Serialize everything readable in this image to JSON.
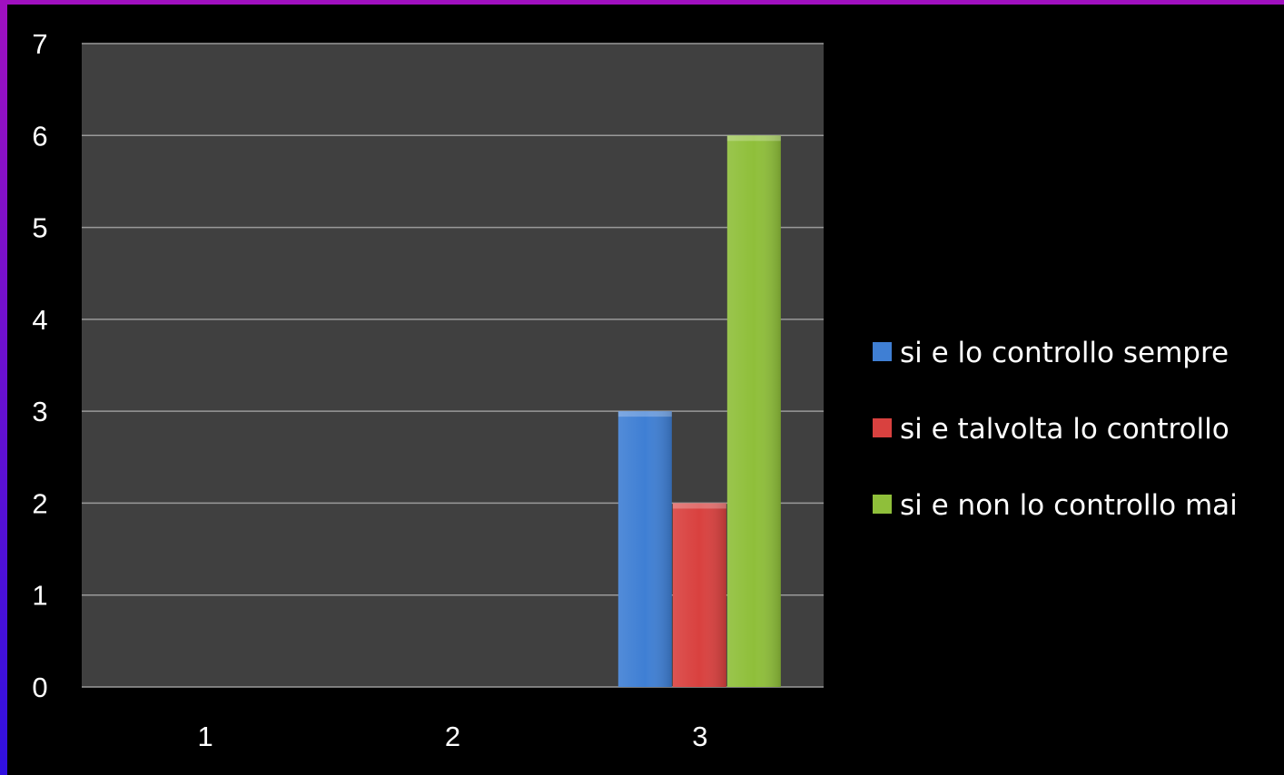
{
  "chart_data": {
    "type": "bar",
    "categories": [
      "1",
      "2",
      "3"
    ],
    "series": [
      {
        "name": "si e lo controllo sempre",
        "values": [
          0,
          0,
          3
        ],
        "color": "#3f7fd4"
      },
      {
        "name": "si e talvolta lo controllo",
        "values": [
          0,
          0,
          2
        ],
        "color": "#d9413f"
      },
      {
        "name": "si e non lo controllo mai",
        "values": [
          0,
          0,
          6
        ],
        "color": "#8fbf3a"
      }
    ],
    "ylim": [
      0,
      7
    ],
    "yticks": [
      "0",
      "1",
      "2",
      "3",
      "4",
      "5",
      "6",
      "7"
    ],
    "grid": true,
    "legend_position": "right",
    "colors": {
      "background": "#000000",
      "plot_area": "#404040",
      "gridline": "#9a9a9a",
      "text": "#ffffff",
      "frame_accent": "#a010c0"
    }
  }
}
